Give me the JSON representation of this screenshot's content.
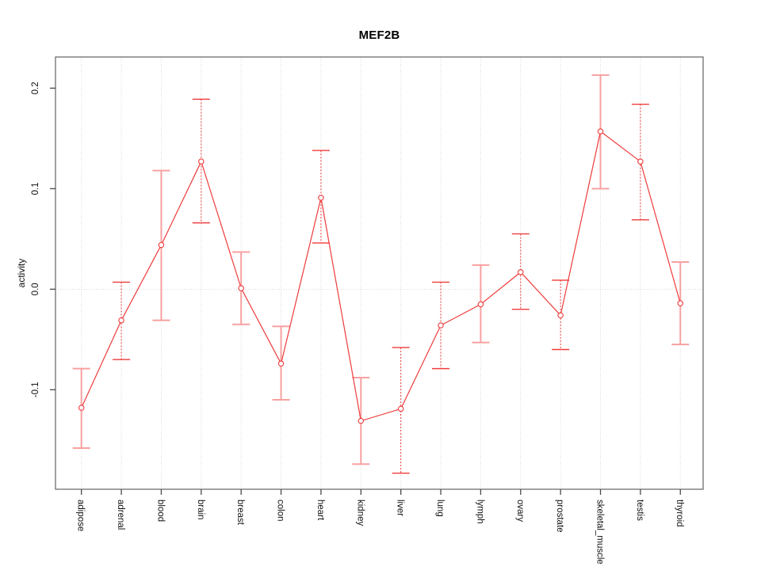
{
  "chart_data": {
    "type": "line",
    "title": "MEF2B",
    "xlabel": "",
    "ylabel": "activity",
    "categories": [
      "adipose",
      "adrenal",
      "blood",
      "brain",
      "breast",
      "colon",
      "heart",
      "kidney",
      "liver",
      "lung",
      "lymph",
      "ovary",
      "prostate",
      "skeletal_muscle",
      "testis",
      "thyroid"
    ],
    "series": [
      {
        "name": "activity",
        "values": [
          -0.118,
          -0.031,
          0.044,
          0.127,
          0.001,
          -0.074,
          0.091,
          -0.131,
          -0.119,
          -0.036,
          -0.015,
          0.017,
          -0.026,
          0.157,
          0.127,
          -0.014
        ],
        "error_upper": [
          -0.079,
          0.007,
          0.118,
          0.189,
          0.037,
          -0.037,
          0.138,
          -0.088,
          -0.058,
          0.007,
          0.024,
          0.055,
          0.009,
          0.213,
          0.184,
          0.027
        ],
        "error_lower": [
          -0.158,
          -0.07,
          -0.031,
          0.066,
          -0.035,
          -0.11,
          0.046,
          -0.174,
          -0.183,
          -0.079,
          -0.053,
          -0.02,
          -0.06,
          0.1,
          0.069,
          -0.055
        ],
        "error_bar_styles": [
          "solid",
          "dotted",
          "solid",
          "dotted",
          "solid",
          "solid",
          "dotted",
          "solid",
          "dotted",
          "dotted",
          "solid",
          "dotted",
          "dotted",
          "solid",
          "dotted",
          "solid"
        ]
      }
    ],
    "yticks": [
      {
        "label": "-0.1",
        "value": -0.1
      },
      {
        "label": "0.0",
        "value": 0.0
      },
      {
        "label": "0.1",
        "value": 0.1
      },
      {
        "label": "0.2",
        "value": 0.2
      }
    ],
    "ylim": [
      -0.199,
      0.231
    ],
    "grid": {
      "vertical": "dotted at each category",
      "horizontal": "dotted at y=0"
    },
    "legend": "none",
    "marker": "open-circle",
    "colors": {
      "line": "#ef3b3b",
      "marker": "#ef3b3b",
      "error_bar_solid": "#f8a0a0",
      "error_bar_dotted": "#ef3b3b",
      "grid": "#d9d9d9",
      "axis_box": "#6e6e6e",
      "tick": "#4a4a4a",
      "text": "#111111"
    }
  }
}
